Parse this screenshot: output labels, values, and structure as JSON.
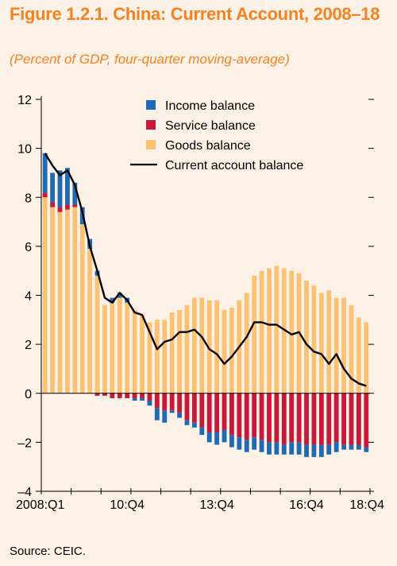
{
  "figure": {
    "title": "Figure 1.2.1. China: Current Account, 2008–18",
    "subtitle": "(Percent of GDP, four-quarter moving-average)",
    "source": "Source: CEIC."
  },
  "colors": {
    "income": "#1f6ab4",
    "service": "#c8193b",
    "goods": "#fbc274",
    "line": "#000000",
    "title": "#f58220"
  },
  "chart_data": {
    "type": "bar",
    "stacked": true,
    "title": "",
    "xlabel": "",
    "ylabel": "",
    "ylim": [
      -4,
      12
    ],
    "yticks": [
      "12",
      "10",
      "8",
      "6",
      "4",
      "2",
      "0",
      "–2",
      "–4"
    ],
    "xtick_labels": [
      "2008:Q1",
      "10:Q4",
      "13:Q4",
      "16:Q4",
      "18:Q4"
    ],
    "grid": false,
    "legend_position": "top-right",
    "categories": [
      "2008:Q1",
      "2008:Q2",
      "2008:Q3",
      "2008:Q4",
      "2009:Q1",
      "2009:Q2",
      "2009:Q3",
      "2009:Q4",
      "2010:Q1",
      "2010:Q2",
      "2010:Q3",
      "2010:Q4",
      "2011:Q1",
      "2011:Q2",
      "2011:Q3",
      "2011:Q4",
      "2012:Q1",
      "2012:Q2",
      "2012:Q3",
      "2012:Q4",
      "2013:Q1",
      "2013:Q2",
      "2013:Q3",
      "2013:Q4",
      "2014:Q1",
      "2014:Q2",
      "2014:Q3",
      "2014:Q4",
      "2015:Q1",
      "2015:Q2",
      "2015:Q3",
      "2015:Q4",
      "2016:Q1",
      "2016:Q2",
      "2016:Q3",
      "2016:Q4",
      "2017:Q1",
      "2017:Q2",
      "2017:Q3",
      "2017:Q4",
      "2018:Q1",
      "2018:Q2",
      "2018:Q3",
      "2018:Q4"
    ],
    "series": [
      {
        "name": "Income balance",
        "kind": "bar",
        "values": [
          1.6,
          1.2,
          1.5,
          1.5,
          0.9,
          0.7,
          0.4,
          0.2,
          0.0,
          0.2,
          0.2,
          0.2,
          -0.1,
          -0.1,
          -0.2,
          -0.5,
          -0.5,
          -0.1,
          -0.2,
          -0.2,
          -0.2,
          -0.3,
          -0.4,
          -0.5,
          -0.5,
          -0.5,
          -0.5,
          -0.5,
          -0.5,
          -0.5,
          -0.5,
          -0.5,
          -0.4,
          -0.5,
          -0.5,
          -0.5,
          -0.5,
          -0.5,
          -0.4,
          -0.4,
          -0.2,
          -0.2,
          -0.2,
          -0.2
        ]
      },
      {
        "name": "Service balance",
        "kind": "bar",
        "values": [
          0.2,
          0.2,
          0.2,
          0.2,
          0.1,
          0.0,
          0.0,
          -0.1,
          -0.1,
          -0.2,
          -0.2,
          -0.2,
          -0.2,
          -0.2,
          -0.3,
          -0.6,
          -0.7,
          -0.7,
          -0.8,
          -1.1,
          -1.2,
          -1.4,
          -1.6,
          -1.6,
          -1.5,
          -1.7,
          -1.8,
          -1.9,
          -1.8,
          -1.9,
          -2.0,
          -2.0,
          -2.1,
          -2.0,
          -2.0,
          -2.1,
          -2.1,
          -2.1,
          -2.1,
          -2.0,
          -2.1,
          -2.1,
          -2.1,
          -2.2
        ]
      },
      {
        "name": "Goods balance",
        "kind": "bar",
        "values": [
          8.0,
          7.6,
          7.4,
          7.5,
          7.6,
          6.9,
          5.9,
          4.8,
          3.6,
          3.7,
          3.9,
          3.7,
          3.4,
          3.2,
          2.9,
          3.0,
          3.0,
          3.3,
          3.4,
          3.6,
          3.9,
          3.9,
          3.8,
          3.8,
          3.4,
          3.5,
          3.8,
          4.1,
          4.8,
          5.0,
          5.1,
          5.2,
          5.1,
          5.0,
          4.9,
          4.6,
          4.4,
          4.1,
          4.2,
          3.9,
          3.9,
          3.6,
          3.1,
          2.9
        ]
      },
      {
        "name": "Current account balance",
        "kind": "line",
        "values": [
          9.8,
          9.3,
          8.9,
          9.1,
          8.5,
          7.4,
          6.0,
          5.0,
          3.9,
          3.7,
          4.1,
          3.8,
          3.3,
          3.2,
          2.5,
          1.8,
          2.1,
          2.2,
          2.5,
          2.5,
          2.6,
          2.3,
          1.8,
          1.6,
          1.2,
          1.5,
          1.9,
          2.3,
          2.9,
          2.9,
          2.8,
          2.8,
          2.6,
          2.4,
          2.5,
          2.0,
          1.7,
          1.6,
          1.2,
          1.6,
          1.0,
          0.6,
          0.4,
          0.3
        ]
      }
    ]
  }
}
